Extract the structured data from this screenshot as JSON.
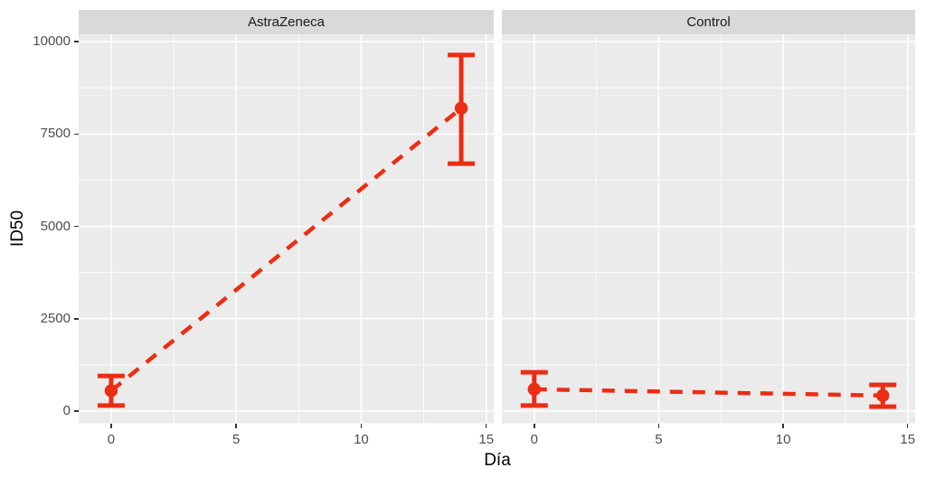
{
  "chart_data": {
    "type": "line",
    "variant": "faceted point + errorbar with dashed connecting line (ggplot style)",
    "title": "",
    "xlabel": "Día",
    "ylabel": "ID50",
    "facets": [
      {
        "label": "AstraZeneca",
        "points": [
          {
            "x": 0,
            "y": 550,
            "ymin": 150,
            "ymax": 950
          },
          {
            "x": 14,
            "y": 8200,
            "ymin": 6700,
            "ymax": 9640
          }
        ]
      },
      {
        "label": "Control",
        "points": [
          {
            "x": 0,
            "y": 590,
            "ymin": 150,
            "ymax": 1050
          },
          {
            "x": 14,
            "y": 420,
            "ymin": 120,
            "ymax": 710
          }
        ]
      }
    ],
    "x_ticks": [
      0,
      5,
      10,
      15
    ],
    "x_minor_ticks": [
      2.5,
      7.5,
      12.5
    ],
    "y_ticks": [
      0,
      2500,
      5000,
      7500,
      10000
    ],
    "y_minor_ticks": [
      1250,
      3750,
      6250,
      8750
    ],
    "x_domain": [
      -1.3,
      15.3
    ],
    "y_domain": [
      -330,
      10200
    ],
    "grid": "major+minor white on grey panel",
    "legend": "none",
    "line_style": "dashed"
  },
  "theme": {
    "background": "#FFFFFF",
    "panel_bg": "#EBEBEB",
    "strip_bg": "#D9D9D9",
    "grid_color": "#FFFFFF",
    "series_color": "#EB2D14",
    "tick_color": "#333333",
    "tick_label_color": "#4D4D4D",
    "strip_text_color": "#1A1A1A",
    "axis_title_color": "#000000"
  }
}
